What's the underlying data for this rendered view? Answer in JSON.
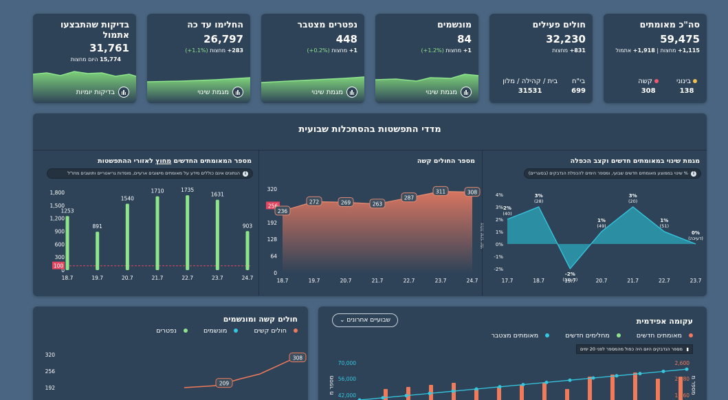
{
  "stats": [
    {
      "title": "סה\"כ מאומתים",
      "value": "59,475",
      "sub1": "1,115+",
      "sub1b": " מחצות | ",
      "sub2": "1,918+",
      "sub2b": " אתמול",
      "breakdown": [
        {
          "label": "בינוני",
          "value": "138",
          "color": "#f0c04c"
        },
        {
          "label": "קשה",
          "value": "308",
          "color": "#ef5a6f"
        }
      ]
    },
    {
      "title": "חולים פעילים",
      "value": "32,230",
      "sub1": "831+",
      "sub1b": " מחצות",
      "breakdown": [
        {
          "label": "בי\"ח",
          "value": "699"
        },
        {
          "label": "בית / קהילה / מלון",
          "value": "31531"
        }
      ]
    },
    {
      "title": "מונשמים",
      "value": "84",
      "sub1": "1+",
      "sub1b": " מחצות ",
      "pct": "(1.2%+)",
      "btn": "מגמת שינוי"
    },
    {
      "title": "נפטרים מצטבר",
      "value": "448",
      "sub1": "1+",
      "sub1b": " מחצות ",
      "pct": "(0.2%+)",
      "btn": "מגמת שינוי"
    },
    {
      "title": "החלימו עד כה",
      "value": "26,797",
      "sub1": "283+",
      "sub1b": " מחצות ",
      "pct": "(1.1%+)",
      "btn": "מגמת שינוי"
    },
    {
      "title": "בדיקות שהתבצעו אתמול",
      "value": "31,761",
      "sub1": "15,774",
      "sub1b": " היום מחצות",
      "btn": "בדיקות יומיות"
    }
  ],
  "section_title": "מדדי התפשטות בהסתכלות שבועית",
  "panels": {
    "change": {
      "title": "מגמת שינוי במאומתים חדשים וקצב הכפלה",
      "note": "% שינוי בממוצע מאומתים חדשים שבועי, ומספר הימים להכפלת הנדבקים (בסוגריים)",
      "y_axis": "אחוז שינוי יומי"
    },
    "severe": {
      "title": "מספר החולים קשה"
    },
    "outside": {
      "title_a": "מספר המאומתים החדשים ",
      "title_u": "מחוץ",
      "title_b": " לאזורי ההתפשטות",
      "note": "הנתונים אינם כוללים מידע על מאומתים מישובים ארעיים, מוסדות גריאטריים ותושבים מחו\"ל"
    }
  },
  "epi": {
    "title": "עקומה אפידמית",
    "dropdown": "שבועיים אחרונים",
    "legend": [
      "מאומתים חדשים",
      "מחלימים חדשים",
      "מאומתים מצטבר"
    ],
    "legend_colors": [
      "#f07b5a",
      "#8ee58b",
      "#35c7e0"
    ],
    "note": "מספר הנדבקים היום היה כפול מהמספר לפני 20 ימים",
    "y_left": "מספר מ",
    "y_right": "מספר מ"
  },
  "severe_vent": {
    "title": "חולים קשה ומונשמים",
    "legend": [
      "חולים קשים",
      "מונשמים",
      "נפטרים"
    ],
    "legend_colors": [
      "#f07b5a",
      "#35c7e0",
      "#8ee58b"
    ]
  },
  "chart_data": [
    {
      "type": "area",
      "title": "מגמת שינוי במאומתים חדשים וקצב הכפלה",
      "ylabel": "אחוז שינוי יומי",
      "categories": [
        "17.7",
        "18.7",
        "19.7",
        "20.7",
        "21.7",
        "22.7",
        "23.7"
      ],
      "values": [
        2,
        3,
        -2,
        1,
        3,
        1,
        0
      ],
      "labels": [
        "2%",
        "3%",
        "-2%",
        "1%",
        "3%",
        "1%",
        "0%"
      ],
      "sublabels": [
        "(40)",
        "(28)",
        "(דעיכה)",
        "(49)",
        "(20)",
        "(51)",
        "(דעיכה)"
      ],
      "yticks": [
        "4%",
        "3%",
        "2%",
        "1%",
        "0%",
        "-1%",
        "-2%"
      ],
      "ylim": [
        -2,
        4
      ]
    },
    {
      "type": "area",
      "title": "מספר החולים קשה",
      "categories": [
        "18.7",
        "19.7",
        "20.7",
        "21.7",
        "22.7",
        "23.7",
        "24.7"
      ],
      "values": [
        236,
        272,
        269,
        263,
        287,
        311,
        308
      ],
      "yticks": [
        "0",
        "64",
        "128",
        "192",
        "256",
        "320"
      ],
      "ylim": [
        0,
        320
      ],
      "threshold": "256"
    },
    {
      "type": "bar",
      "title": "מספר המאומתים החדשים מחוץ לאזורי ההתפשטות",
      "categories": [
        "18.7",
        "19.7",
        "20.7",
        "21.7",
        "22.7",
        "23.7",
        "24.7"
      ],
      "values": [
        1253,
        891,
        1540,
        1710,
        1735,
        1631,
        903
      ],
      "yticks": [
        "0",
        "300",
        "600",
        "900",
        "1,200",
        "1,500",
        "1,800"
      ],
      "ylim": [
        0,
        1800
      ],
      "threshold": "100"
    },
    {
      "type": "line",
      "title": "חולים קשה ומונשמים",
      "series": [
        {
          "name": "חולים קשים",
          "points": [
            [
              120,
              0
            ],
            [
              170,
              192
            ],
            [
              209,
              209
            ],
            [
              250,
              232
            ],
            [
              308,
              308
            ]
          ]
        }
      ],
      "yticks": [
        "192",
        "256",
        "320"
      ],
      "labels": [
        "209",
        "308"
      ]
    },
    {
      "type": "bar",
      "title": "עקומה אפידמית",
      "yticks_left": [
        "42,000",
        "56,000",
        "70,000"
      ],
      "yticks_right": [
        "1,560",
        "2,080",
        "2,600"
      ]
    }
  ]
}
